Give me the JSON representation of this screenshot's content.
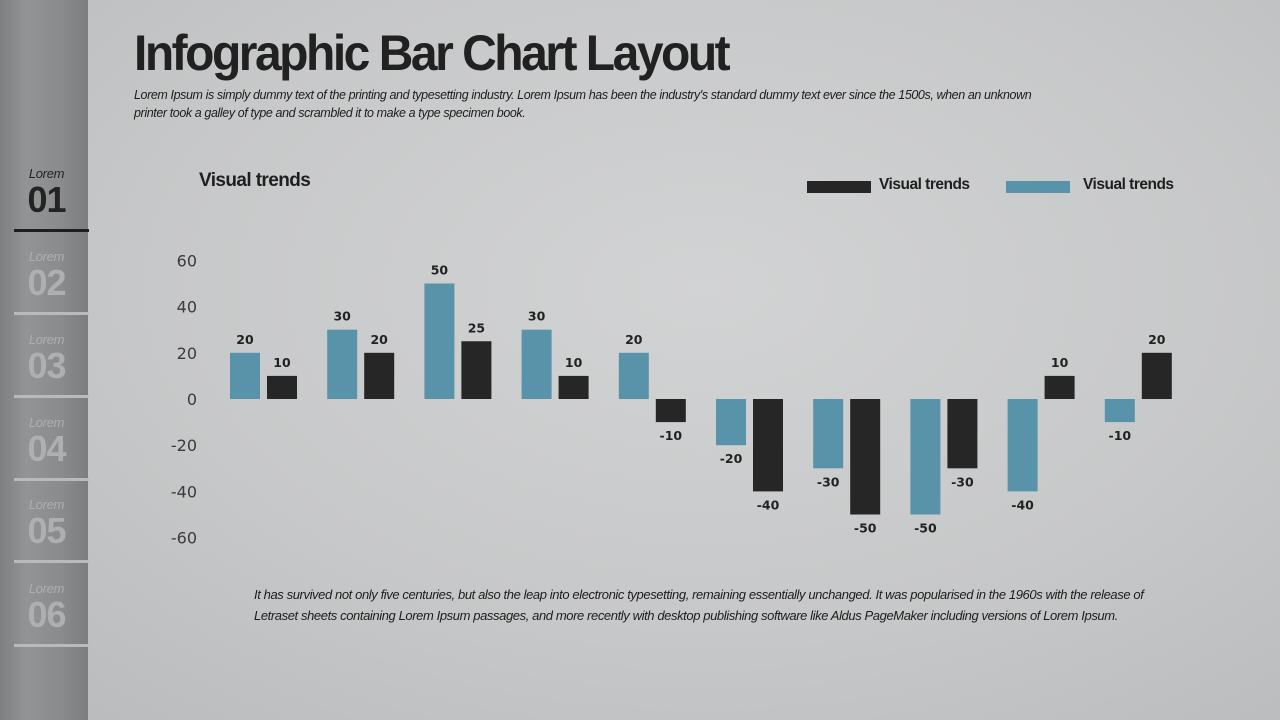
{
  "sidebar": {
    "items": [
      {
        "label": "Lorem",
        "number": "01",
        "active": true
      },
      {
        "label": "Lorem",
        "number": "02",
        "active": false
      },
      {
        "label": "Lorem",
        "number": "03",
        "active": false
      },
      {
        "label": "Lorem",
        "number": "04",
        "active": false
      },
      {
        "label": "Lorem",
        "number": "05",
        "active": false
      },
      {
        "label": "Lorem",
        "number": "06",
        "active": false
      }
    ]
  },
  "header": {
    "title": "Infographic Bar Chart Layout",
    "intro": "Lorem Ipsum is simply dummy text of the printing and typesetting industry. Lorem Ipsum has been the industry's standard dummy text ever since the 1500s, when an unknown printer took a galley of type and scrambled it to make a type specimen book."
  },
  "footer": {
    "text": "It has survived not only five centuries, but also the leap into electronic typesetting, remaining essentially unchanged. It was popularised in the 1960s with the release of Letraset sheets containing Lorem Ipsum passages, and more recently with desktop publishing software like Aldus PageMaker including versions of Lorem Ipsum."
  },
  "colors": {
    "blue": "#5993aa",
    "dark": "#262626"
  },
  "chart_data": {
    "type": "bar",
    "title": "Visual trends",
    "xlabel": "",
    "ylabel": "",
    "ylim": [
      -60,
      60
    ],
    "yticks": [
      60,
      40,
      20,
      0,
      -20,
      -40,
      -60
    ],
    "grid": false,
    "legend_position": "top-right",
    "categories": [
      "",
      "",
      "",
      "",
      "",
      "",
      "",
      "",
      "",
      ""
    ],
    "series": [
      {
        "name": "Visual trends",
        "color": "#5993aa",
        "values": [
          20,
          30,
          50,
          30,
          20,
          -20,
          -30,
          -50,
          -40,
          -10
        ]
      },
      {
        "name": "Visual trends",
        "color": "#262626",
        "values": [
          10,
          20,
          25,
          10,
          -10,
          -40,
          -50,
          -30,
          10,
          20
        ]
      }
    ],
    "legend": [
      {
        "label": "Visual trends",
        "color": "#262626"
      },
      {
        "label": "Visual trends",
        "color": "#5993aa"
      }
    ]
  }
}
